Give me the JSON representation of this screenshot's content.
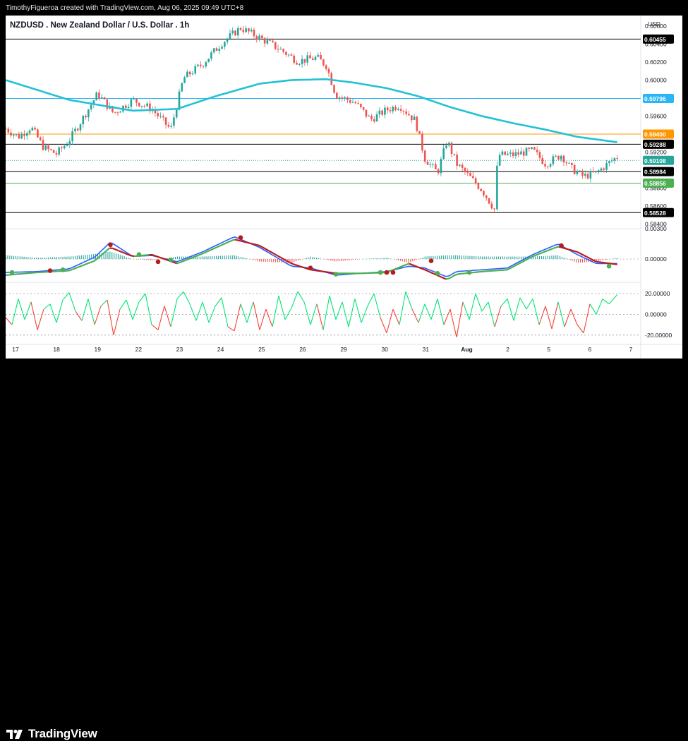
{
  "caption": "TimothyFigueroa created with TradingView.com, Aug 06, 2025 09:49 UTC+8",
  "brand": "TradingView",
  "colors": {
    "up": "#26a69a",
    "down": "#ef5350",
    "ma": "#22c1d6",
    "macd": "#2962ff",
    "signal_up": "#4caf50",
    "signal_down": "#b71c1c",
    "osc_up": "#00e676",
    "osc_down": "#f44336",
    "line_black": "#000000",
    "line_blue": "#29b6f6",
    "line_orange": "#ff9800",
    "line_green": "#4caf50"
  },
  "chart_data": {
    "type": "candlestick",
    "title": "NZDUSD . New Zealand Dollar / U.S. Dollar . 1h",
    "currency": "USD",
    "ylim": [
      0.5835,
      0.6067
    ],
    "y_ticks": [
      "0.60600",
      "0.60400",
      "0.60200",
      "0.60000",
      "0.59800",
      "0.59600",
      "0.59400",
      "0.59200",
      "0.59000",
      "0.58800",
      "0.58600",
      "0.58400"
    ],
    "x_ticks": [
      "17",
      "18",
      "19",
      "22",
      "23",
      "24",
      "25",
      "26",
      "29",
      "30",
      "31",
      "Aug",
      "2",
      "5",
      "6",
      "7"
    ],
    "horizontal_levels": [
      {
        "label": "0.60455",
        "value": 0.60455,
        "color": "#000000"
      },
      {
        "label": "0.59796",
        "value": 0.59796,
        "color": "#29b6f6"
      },
      {
        "label": "0.59400",
        "value": 0.594,
        "color": "#ff9800"
      },
      {
        "label": "0.59288",
        "value": 0.59288,
        "color": "#000000"
      },
      {
        "label": "0.58984",
        "value": 0.58984,
        "color": "#000000"
      },
      {
        "label": "0.58856",
        "value": 0.58856,
        "color": "#4caf50"
      },
      {
        "label": "0.58528",
        "value": 0.58528,
        "color": "#000000"
      }
    ],
    "last_price": {
      "label": "0.59108",
      "value": 0.59108,
      "color": "#26a69a"
    },
    "close_path": [
      [
        0,
        0.5946
      ],
      [
        0.02,
        0.5937
      ],
      [
        0.04,
        0.5948
      ],
      [
        0.06,
        0.5925
      ],
      [
        0.08,
        0.5918
      ],
      [
        0.1,
        0.5933
      ],
      [
        0.12,
        0.5956
      ],
      [
        0.145,
        0.5985
      ],
      [
        0.17,
        0.5963
      ],
      [
        0.2,
        0.5978
      ],
      [
        0.23,
        0.5968
      ],
      [
        0.26,
        0.5945
      ],
      [
        0.28,
        0.6002
      ],
      [
        0.31,
        0.6018
      ],
      [
        0.34,
        0.6041
      ],
      [
        0.37,
        0.6058
      ],
      [
        0.4,
        0.6047
      ],
      [
        0.43,
        0.6035
      ],
      [
        0.46,
        0.6021
      ],
      [
        0.49,
        0.6025
      ],
      [
        0.505,
        0.6016
      ],
      [
        0.52,
        0.5983
      ],
      [
        0.55,
        0.5975
      ],
      [
        0.575,
        0.5956
      ],
      [
        0.6,
        0.5967
      ],
      [
        0.62,
        0.5972
      ],
      [
        0.645,
        0.5955
      ],
      [
        0.66,
        0.5913
      ],
      [
        0.68,
        0.5897
      ],
      [
        0.695,
        0.5933
      ],
      [
        0.71,
        0.5907
      ],
      [
        0.73,
        0.5893
      ],
      [
        0.75,
        0.5878
      ],
      [
        0.77,
        0.5856
      ],
      [
        0.775,
        0.5917
      ],
      [
        0.8,
        0.5917
      ],
      [
        0.83,
        0.5922
      ],
      [
        0.85,
        0.5907
      ],
      [
        0.875,
        0.5917
      ],
      [
        0.89,
        0.5902
      ],
      [
        0.91,
        0.5893
      ],
      [
        0.93,
        0.5897
      ],
      [
        0.95,
        0.5908
      ],
      [
        0.963,
        0.5915
      ]
    ],
    "ma_path": [
      [
        0,
        0.6
      ],
      [
        0.1,
        0.5978
      ],
      [
        0.2,
        0.5966
      ],
      [
        0.27,
        0.5968
      ],
      [
        0.33,
        0.5982
      ],
      [
        0.4,
        0.5996
      ],
      [
        0.45,
        0.6
      ],
      [
        0.505,
        0.6001
      ],
      [
        0.55,
        0.5997
      ],
      [
        0.6,
        0.5991
      ],
      [
        0.65,
        0.5982
      ],
      [
        0.7,
        0.597
      ],
      [
        0.75,
        0.596
      ],
      [
        0.8,
        0.5952
      ],
      [
        0.85,
        0.5945
      ],
      [
        0.9,
        0.5937
      ],
      [
        0.963,
        0.5931
      ]
    ],
    "macd_panel": {
      "type": "line",
      "zero_label": "0.00000",
      "top_label": "0.00300",
      "ylim": [
        -0.0026,
        0.0034
      ],
      "macd": [
        [
          0,
          -0.0015
        ],
        [
          0.05,
          -0.0014
        ],
        [
          0.1,
          -0.0011
        ],
        [
          0.14,
          0.0002
        ],
        [
          0.165,
          0.0019
        ],
        [
          0.2,
          0.0003
        ],
        [
          0.23,
          0.0004
        ],
        [
          0.27,
          -0.0003
        ],
        [
          0.31,
          0.0008
        ],
        [
          0.36,
          0.0025
        ],
        [
          0.4,
          0.0013
        ],
        [
          0.45,
          -0.0008
        ],
        [
          0.48,
          -0.001
        ],
        [
          0.52,
          -0.0018
        ],
        [
          0.56,
          -0.0016
        ],
        [
          0.6,
          -0.0014
        ],
        [
          0.635,
          -0.0008
        ],
        [
          0.66,
          -0.001
        ],
        [
          0.695,
          -0.002
        ],
        [
          0.71,
          -0.0014
        ],
        [
          0.75,
          -0.0012
        ],
        [
          0.79,
          -0.001
        ],
        [
          0.83,
          0.0005
        ],
        [
          0.87,
          0.0017
        ],
        [
          0.9,
          0.0005
        ],
        [
          0.93,
          -0.0005
        ],
        [
          0.963,
          -0.0005
        ]
      ],
      "signal": [
        [
          0,
          -0.0018
        ],
        [
          0.05,
          -0.0015
        ],
        [
          0.1,
          -0.0013
        ],
        [
          0.14,
          -0.0002
        ],
        [
          0.165,
          0.0013
        ],
        [
          0.2,
          0.0003
        ],
        [
          0.23,
          0.0005
        ],
        [
          0.27,
          -0.0005
        ],
        [
          0.31,
          0.0006
        ],
        [
          0.36,
          0.0022
        ],
        [
          0.4,
          0.0015
        ],
        [
          0.45,
          -0.0005
        ],
        [
          0.48,
          -0.0012
        ],
        [
          0.52,
          -0.0016
        ],
        [
          0.56,
          -0.0016
        ],
        [
          0.6,
          -0.0015
        ],
        [
          0.635,
          -0.0005
        ],
        [
          0.66,
          -0.0012
        ],
        [
          0.695,
          -0.0023
        ],
        [
          0.71,
          -0.0017
        ],
        [
          0.75,
          -0.0014
        ],
        [
          0.79,
          -0.0012
        ],
        [
          0.83,
          0.0003
        ],
        [
          0.87,
          0.0014
        ],
        [
          0.9,
          0.0008
        ],
        [
          0.93,
          -0.0003
        ],
        [
          0.963,
          -0.0006
        ]
      ],
      "cross_dots_up": [
        [
          0.01,
          -0.0015
        ],
        [
          0.09,
          -0.0012
        ],
        [
          0.21,
          0.0005
        ],
        [
          0.26,
          -0.0001
        ],
        [
          0.52,
          -0.0017
        ],
        [
          0.59,
          -0.0015
        ],
        [
          0.68,
          -0.0016
        ],
        [
          0.73,
          -0.0015
        ],
        [
          0.95,
          -0.0008
        ]
      ],
      "cross_dots_down": [
        [
          0.07,
          -0.0013
        ],
        [
          0.165,
          0.0016
        ],
        [
          0.24,
          -0.0003
        ],
        [
          0.37,
          0.0024
        ],
        [
          0.48,
          -0.001
        ],
        [
          0.6,
          -0.0015
        ],
        [
          0.61,
          -0.0015
        ],
        [
          0.67,
          -0.0002
        ],
        [
          0.875,
          0.0015
        ]
      ]
    },
    "oscillator_panel": {
      "type": "line",
      "labels": [
        "20.00000",
        "0.00000",
        "-20.00000"
      ],
      "ylim": [
        -29,
        31
      ],
      "values": [
        [
          0,
          -3
        ],
        [
          0.01,
          -10
        ],
        [
          0.02,
          15
        ],
        [
          0.03,
          -5
        ],
        [
          0.04,
          12
        ],
        [
          0.05,
          -15
        ],
        [
          0.06,
          5
        ],
        [
          0.07,
          10
        ],
        [
          0.08,
          -8
        ],
        [
          0.09,
          14
        ],
        [
          0.1,
          21
        ],
        [
          0.11,
          3
        ],
        [
          0.12,
          -6
        ],
        [
          0.13,
          15
        ],
        [
          0.14,
          -10
        ],
        [
          0.15,
          8
        ],
        [
          0.16,
          14
        ],
        [
          0.17,
          -20
        ],
        [
          0.18,
          5
        ],
        [
          0.19,
          14
        ],
        [
          0.2,
          -5
        ],
        [
          0.21,
          12
        ],
        [
          0.22,
          20
        ],
        [
          0.23,
          -10
        ],
        [
          0.24,
          -15
        ],
        [
          0.25,
          8
        ],
        [
          0.26,
          -12
        ],
        [
          0.27,
          15
        ],
        [
          0.28,
          22
        ],
        [
          0.29,
          10
        ],
        [
          0.3,
          -6
        ],
        [
          0.31,
          12
        ],
        [
          0.32,
          -8
        ],
        [
          0.33,
          8
        ],
        [
          0.34,
          16
        ],
        [
          0.35,
          -12
        ],
        [
          0.36,
          -16
        ],
        [
          0.37,
          10
        ],
        [
          0.38,
          -8
        ],
        [
          0.39,
          12
        ],
        [
          0.4,
          -15
        ],
        [
          0.41,
          5
        ],
        [
          0.42,
          -12
        ],
        [
          0.43,
          18
        ],
        [
          0.44,
          -5
        ],
        [
          0.45,
          6
        ],
        [
          0.46,
          22
        ],
        [
          0.47,
          12
        ],
        [
          0.48,
          -10
        ],
        [
          0.49,
          10
        ],
        [
          0.5,
          -15
        ],
        [
          0.51,
          18
        ],
        [
          0.52,
          -5
        ],
        [
          0.53,
          12
        ],
        [
          0.54,
          -12
        ],
        [
          0.55,
          15
        ],
        [
          0.56,
          -8
        ],
        [
          0.57,
          8
        ],
        [
          0.58,
          20
        ],
        [
          0.59,
          -3
        ],
        [
          0.6,
          -18
        ],
        [
          0.61,
          5
        ],
        [
          0.62,
          -10
        ],
        [
          0.63,
          22
        ],
        [
          0.64,
          5
        ],
        [
          0.65,
          -8
        ],
        [
          0.66,
          10
        ],
        [
          0.67,
          -5
        ],
        [
          0.68,
          15
        ],
        [
          0.69,
          -10
        ],
        [
          0.7,
          5
        ],
        [
          0.71,
          -22
        ],
        [
          0.72,
          12
        ],
        [
          0.73,
          -5
        ],
        [
          0.74,
          20
        ],
        [
          0.75,
          3
        ],
        [
          0.76,
          12
        ],
        [
          0.77,
          -12
        ],
        [
          0.78,
          8
        ],
        [
          0.79,
          15
        ],
        [
          0.8,
          -6
        ],
        [
          0.81,
          16
        ],
        [
          0.82,
          5
        ],
        [
          0.83,
          15
        ],
        [
          0.84,
          -10
        ],
        [
          0.85,
          8
        ],
        [
          0.86,
          -14
        ],
        [
          0.87,
          12
        ],
        [
          0.88,
          -12
        ],
        [
          0.89,
          5
        ],
        [
          0.9,
          -10
        ],
        [
          0.91,
          -18
        ],
        [
          0.92,
          10
        ],
        [
          0.93,
          0
        ],
        [
          0.94,
          15
        ],
        [
          0.95,
          10
        ],
        [
          0.963,
          19
        ]
      ]
    }
  }
}
